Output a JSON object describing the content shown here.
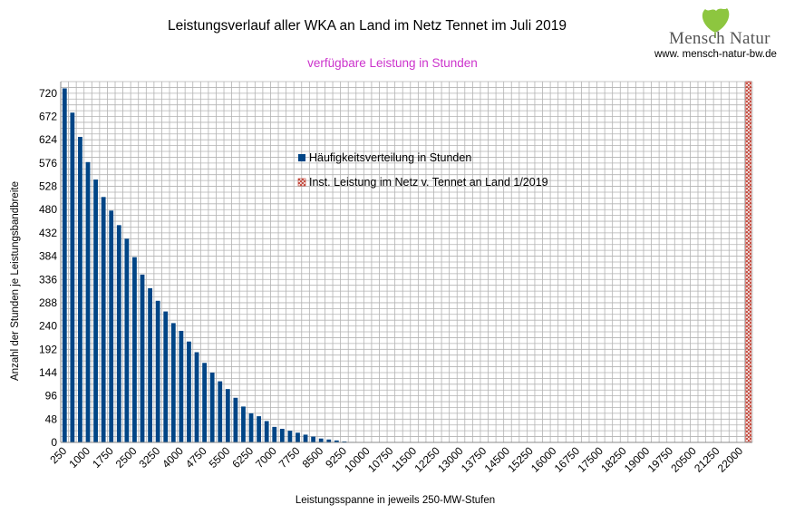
{
  "chart_data": {
    "type": "bar",
    "title": "Leistungsverlauf aller WKA an Land im Netz Tennet im Juli 2019",
    "subtitle": "verfügbare Leistung in Stunden",
    "xlabel": "Leistungsspanne in jeweils 250-MW-Stufen",
    "ylabel": "Anzahl der Stunden je Leistungsbandbreite",
    "ylim": [
      0,
      744
    ],
    "y_ticks": [
      0,
      48,
      96,
      144,
      192,
      240,
      288,
      336,
      384,
      432,
      480,
      528,
      576,
      624,
      672,
      720
    ],
    "x_start": 250,
    "x_step": 250,
    "x_count": 89,
    "x_tick_labels": [
      "250",
      "1000",
      "1750",
      "2500",
      "3250",
      "4000",
      "4750",
      "5500",
      "6250",
      "7000",
      "7750",
      "8500",
      "9250",
      "10000",
      "10750",
      "11500",
      "12250",
      "13000",
      "13750",
      "14500",
      "15250",
      "16000",
      "16750",
      "17500",
      "18250",
      "19000",
      "19750",
      "20500",
      "21250",
      "22000"
    ],
    "grid": true,
    "legend_position": "center",
    "series": [
      {
        "name": "Häufigkeitsverteilung in Stunden",
        "color": "#004586",
        "values": [
          730,
          680,
          630,
          578,
          542,
          506,
          478,
          448,
          420,
          382,
          346,
          318,
          292,
          270,
          246,
          230,
          208,
          186,
          164,
          144,
          126,
          110,
          92,
          74,
          60,
          54,
          44,
          32,
          28,
          24,
          20,
          16,
          12,
          8,
          6,
          4,
          2,
          1,
          0
        ]
      },
      {
        "name": "Inst. Leistung im Netz v. Tennet an Land 1/2019",
        "color": "#c0392b",
        "x_value": 22250
      }
    ]
  },
  "logo": {
    "text": "Mensch Natur",
    "url": "www. mensch-natur-bw.de",
    "leaf_color": "#8dc63f"
  }
}
